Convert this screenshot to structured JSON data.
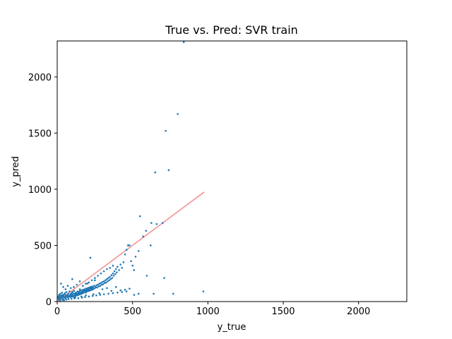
{
  "chart_data": {
    "type": "scatter",
    "title": "True vs. Pred: SVR train",
    "xlabel": "y_true",
    "ylabel": "y_pred",
    "xlim": [
      0,
      2320
    ],
    "ylim": [
      0,
      2320
    ],
    "xticks": [
      "0",
      "500",
      "1000",
      "1500",
      "2000"
    ],
    "yticks": [
      "0",
      "500",
      "1000",
      "1500",
      "2000"
    ],
    "grid": false,
    "point_color": "#1f77b4",
    "line_color": "#f08080",
    "reference_line": {
      "x": [
        0,
        975
      ],
      "y": [
        0,
        975
      ]
    },
    "points": [
      [
        5,
        30
      ],
      [
        8,
        45
      ],
      [
        10,
        20
      ],
      [
        12,
        60
      ],
      [
        15,
        35
      ],
      [
        18,
        50
      ],
      [
        20,
        25
      ],
      [
        22,
        70
      ],
      [
        25,
        40
      ],
      [
        28,
        55
      ],
      [
        30,
        30
      ],
      [
        32,
        80
      ],
      [
        35,
        45
      ],
      [
        38,
        60
      ],
      [
        40,
        20
      ],
      [
        42,
        50
      ],
      [
        45,
        35
      ],
      [
        48,
        65
      ],
      [
        50,
        40
      ],
      [
        52,
        75
      ],
      [
        55,
        30
      ],
      [
        58,
        55
      ],
      [
        60,
        45
      ],
      [
        62,
        85
      ],
      [
        65,
        50
      ],
      [
        68,
        40
      ],
      [
        70,
        60
      ],
      [
        72,
        35
      ],
      [
        75,
        70
      ],
      [
        78,
        50
      ],
      [
        80,
        45
      ],
      [
        82,
        90
      ],
      [
        85,
        55
      ],
      [
        88,
        40
      ],
      [
        90,
        65
      ],
      [
        92,
        50
      ],
      [
        95,
        75
      ],
      [
        98,
        45
      ],
      [
        100,
        60
      ],
      [
        102,
        85
      ],
      [
        105,
        50
      ],
      [
        108,
        70
      ],
      [
        110,
        40
      ],
      [
        112,
        95
      ],
      [
        115,
        55
      ],
      [
        118,
        65
      ],
      [
        120,
        75
      ],
      [
        122,
        50
      ],
      [
        125,
        80
      ],
      [
        128,
        60
      ],
      [
        130,
        70
      ],
      [
        132,
        55
      ],
      [
        135,
        90
      ],
      [
        138,
        65
      ],
      [
        140,
        75
      ],
      [
        142,
        60
      ],
      [
        145,
        85
      ],
      [
        148,
        70
      ],
      [
        150,
        95
      ],
      [
        152,
        65
      ],
      [
        155,
        80
      ],
      [
        158,
        75
      ],
      [
        160,
        100
      ],
      [
        162,
        70
      ],
      [
        165,
        85
      ],
      [
        168,
        90
      ],
      [
        170,
        75
      ],
      [
        172,
        105
      ],
      [
        175,
        80
      ],
      [
        178,
        95
      ],
      [
        180,
        85
      ],
      [
        182,
        110
      ],
      [
        185,
        90
      ],
      [
        188,
        100
      ],
      [
        190,
        80
      ],
      [
        192,
        115
      ],
      [
        195,
        95
      ],
      [
        198,
        105
      ],
      [
        200,
        90
      ],
      [
        202,
        120
      ],
      [
        205,
        100
      ],
      [
        208,
        110
      ],
      [
        210,
        95
      ],
      [
        212,
        125
      ],
      [
        215,
        105
      ],
      [
        218,
        115
      ],
      [
        220,
        100
      ],
      [
        222,
        130
      ],
      [
        225,
        110
      ],
      [
        228,
        120
      ],
      [
        230,
        105
      ],
      [
        232,
        135
      ],
      [
        235,
        115
      ],
      [
        238,
        125
      ],
      [
        240,
        110
      ],
      [
        245,
        140
      ],
      [
        250,
        120
      ],
      [
        255,
        130
      ],
      [
        260,
        145
      ],
      [
        265,
        125
      ],
      [
        270,
        150
      ],
      [
        275,
        135
      ],
      [
        280,
        160
      ],
      [
        285,
        140
      ],
      [
        290,
        165
      ],
      [
        295,
        150
      ],
      [
        300,
        175
      ],
      [
        305,
        155
      ],
      [
        310,
        180
      ],
      [
        315,
        165
      ],
      [
        320,
        190
      ],
      [
        325,
        170
      ],
      [
        330,
        200
      ],
      [
        335,
        180
      ],
      [
        340,
        210
      ],
      [
        345,
        190
      ],
      [
        350,
        220
      ],
      [
        355,
        200
      ],
      [
        360,
        235
      ],
      [
        365,
        210
      ],
      [
        370,
        250
      ],
      [
        375,
        230
      ],
      [
        380,
        270
      ],
      [
        385,
        245
      ],
      [
        390,
        290
      ],
      [
        395,
        260
      ],
      [
        400,
        310
      ],
      [
        410,
        280
      ],
      [
        420,
        330
      ],
      [
        430,
        300
      ],
      [
        440,
        350
      ],
      [
        450,
        420
      ],
      [
        460,
        460
      ],
      [
        470,
        500
      ],
      [
        480,
        500
      ],
      [
        490,
        360
      ],
      [
        500,
        320
      ],
      [
        510,
        280
      ],
      [
        25,
        160
      ],
      [
        40,
        130
      ],
      [
        55,
        110
      ],
      [
        70,
        140
      ],
      [
        90,
        120
      ],
      [
        110,
        130
      ],
      [
        130,
        150
      ],
      [
        150,
        110
      ],
      [
        170,
        140
      ],
      [
        190,
        160
      ],
      [
        210,
        170
      ],
      [
        230,
        190
      ],
      [
        250,
        210
      ],
      [
        270,
        230
      ],
      [
        290,
        250
      ],
      [
        310,
        270
      ],
      [
        330,
        290
      ],
      [
        350,
        300
      ],
      [
        370,
        320
      ],
      [
        20,
        10
      ],
      [
        35,
        15
      ],
      [
        45,
        12
      ],
      [
        60,
        18
      ],
      [
        75,
        22
      ],
      [
        95,
        25
      ],
      [
        115,
        28
      ],
      [
        140,
        30
      ],
      [
        165,
        35
      ],
      [
        185,
        40
      ],
      [
        210,
        45
      ],
      [
        235,
        50
      ],
      [
        260,
        55
      ],
      [
        285,
        60
      ],
      [
        310,
        65
      ],
      [
        340,
        70
      ],
      [
        370,
        75
      ],
      [
        400,
        80
      ],
      [
        430,
        85
      ],
      [
        460,
        90
      ],
      [
        300,
        110
      ],
      [
        330,
        120
      ],
      [
        360,
        95
      ],
      [
        390,
        130
      ],
      [
        420,
        100
      ],
      [
        450,
        105
      ],
      [
        480,
        115
      ],
      [
        510,
        60
      ],
      [
        540,
        70
      ],
      [
        100,
        200
      ],
      [
        150,
        180
      ],
      [
        200,
        160
      ],
      [
        250,
        190
      ],
      [
        220,
        390
      ],
      [
        120,
        35
      ],
      [
        160,
        45
      ],
      [
        190,
        55
      ],
      [
        240,
        65
      ],
      [
        280,
        75
      ],
      [
        520,
        400
      ],
      [
        540,
        450
      ],
      [
        550,
        760
      ],
      [
        570,
        580
      ],
      [
        590,
        630
      ],
      [
        595,
        230
      ],
      [
        620,
        500
      ],
      [
        625,
        700
      ],
      [
        640,
        70
      ],
      [
        650,
        1150
      ],
      [
        660,
        690
      ],
      [
        700,
        700
      ],
      [
        720,
        1520
      ],
      [
        740,
        1170
      ],
      [
        710,
        210
      ],
      [
        770,
        70
      ],
      [
        800,
        1670
      ],
      [
        840,
        2310
      ],
      [
        970,
        90
      ]
    ]
  }
}
